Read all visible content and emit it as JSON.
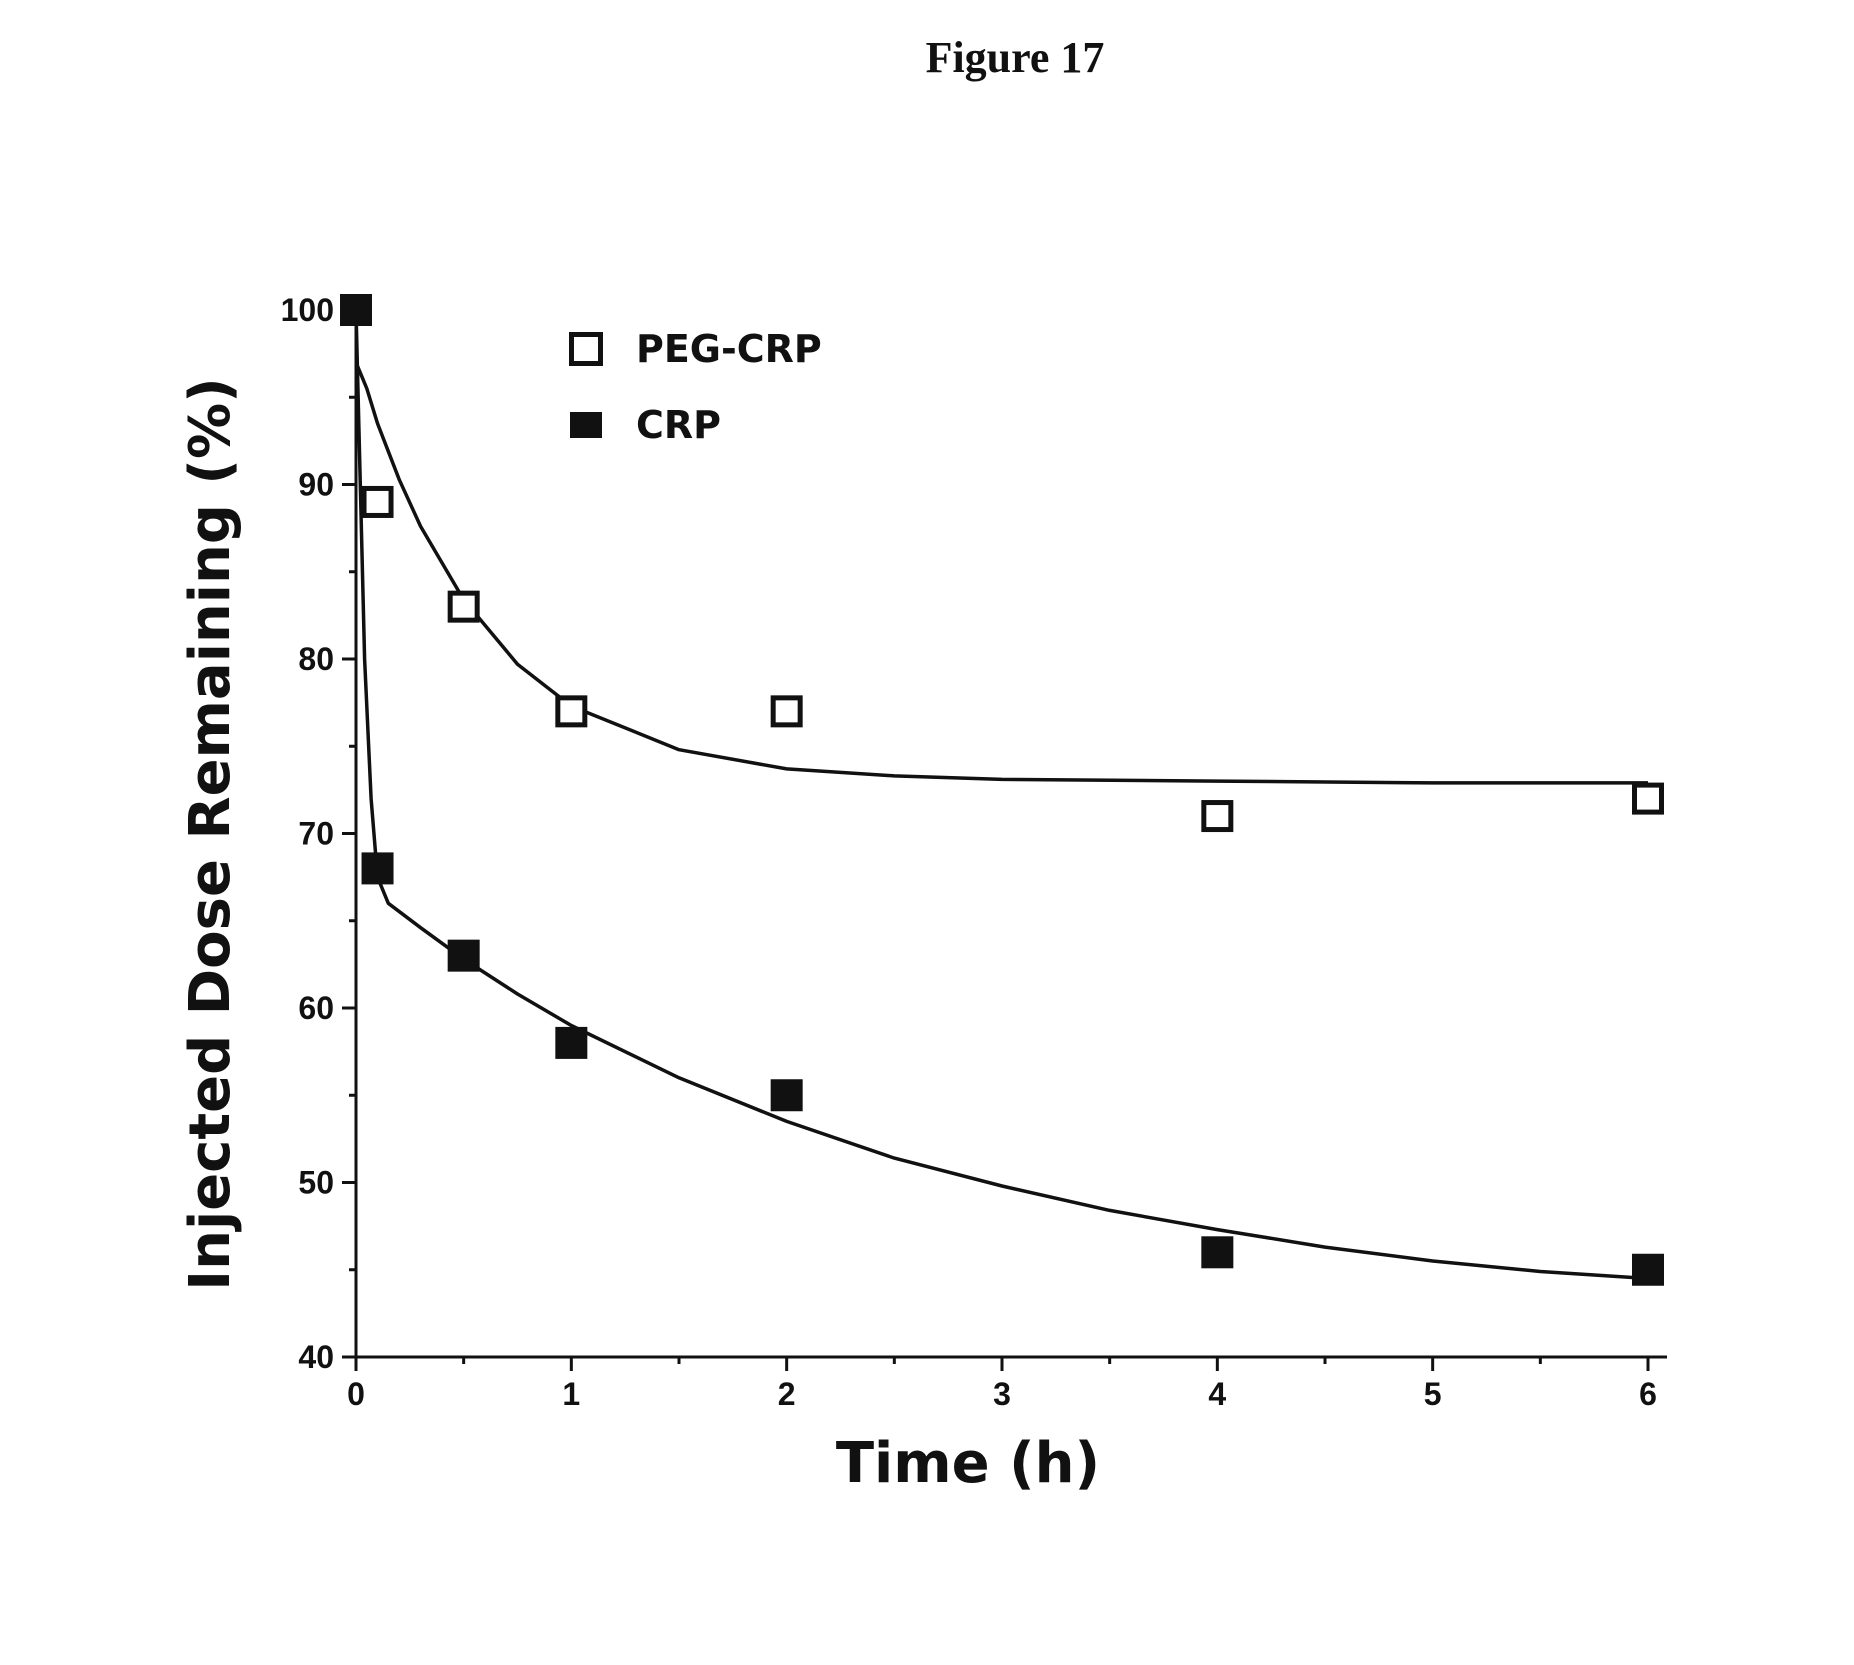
{
  "figure": {
    "title": "Figure 17"
  },
  "chart_data": {
    "type": "scatter",
    "xlabel": "Time (h)",
    "ylabel": "Injected Dose Remaining (%)",
    "xlim": [
      0,
      6
    ],
    "ylim": [
      40,
      100
    ],
    "x_ticks": [
      "0",
      "1",
      "2",
      "3",
      "4",
      "5",
      "6"
    ],
    "y_ticks": [
      "40",
      "50",
      "60",
      "70",
      "80",
      "90",
      "100"
    ],
    "grid": false,
    "legend_position": "top-left",
    "series": [
      {
        "name": "PEG-CRP",
        "marker": "hollow-square",
        "color": "#111111",
        "points": [
          {
            "x": 0,
            "y": 100
          },
          {
            "x": 0.1,
            "y": 89
          },
          {
            "x": 0.5,
            "y": 83
          },
          {
            "x": 1,
            "y": 77
          },
          {
            "x": 2,
            "y": 77
          },
          {
            "x": 4,
            "y": 71
          },
          {
            "x": 6,
            "y": 72
          }
        ],
        "fit_curve": [
          [
            0,
            97
          ],
          [
            0.05,
            95.5
          ],
          [
            0.1,
            93.5
          ],
          [
            0.2,
            90.3
          ],
          [
            0.3,
            87.6
          ],
          [
            0.5,
            83.4
          ],
          [
            0.75,
            79.7
          ],
          [
            1,
            77.3
          ],
          [
            1.5,
            74.8
          ],
          [
            2,
            73.7
          ],
          [
            2.5,
            73.3
          ],
          [
            3,
            73.1
          ],
          [
            4,
            73
          ],
          [
            5,
            72.9
          ],
          [
            6,
            72.9
          ]
        ]
      },
      {
        "name": "CRP",
        "marker": "filled-square",
        "color": "#111111",
        "points": [
          {
            "x": 0,
            "y": 100
          },
          {
            "x": 0.1,
            "y": 68
          },
          {
            "x": 0.5,
            "y": 63
          },
          {
            "x": 1,
            "y": 58
          },
          {
            "x": 2,
            "y": 55
          },
          {
            "x": 4,
            "y": 46
          },
          {
            "x": 6,
            "y": 45
          }
        ],
        "fit_curve": [
          [
            0,
            100
          ],
          [
            0.02,
            90
          ],
          [
            0.04,
            80
          ],
          [
            0.07,
            72
          ],
          [
            0.1,
            67.5
          ],
          [
            0.15,
            66
          ],
          [
            0.3,
            64.6
          ],
          [
            0.5,
            62.8
          ],
          [
            0.75,
            60.8
          ],
          [
            1,
            59
          ],
          [
            1.5,
            56
          ],
          [
            2,
            53.5
          ],
          [
            2.5,
            51.4
          ],
          [
            3,
            49.8
          ],
          [
            3.5,
            48.4
          ],
          [
            4,
            47.3
          ],
          [
            4.5,
            46.3
          ],
          [
            5,
            45.5
          ],
          [
            5.5,
            44.9
          ],
          [
            6,
            44.5
          ]
        ]
      }
    ]
  }
}
